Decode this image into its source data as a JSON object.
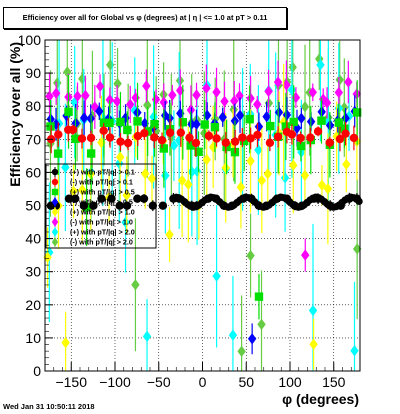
{
  "timestamp": "Wed Jan 31 10:50:11 2018",
  "chart_data": {
    "type": "scatter",
    "title": "Efficiency over all for Global vs φ (degrees) at | η | <= 1.0 at pT > 0.11",
    "xlabel": "φ (degrees)",
    "ylabel": "Efficiency over all (%)",
    "xlim": [
      -180,
      180
    ],
    "ylim": [
      0,
      100
    ],
    "x_ticks": [
      -150,
      -100,
      -50,
      0,
      50,
      100,
      150
    ],
    "y_ticks": [
      0,
      10,
      20,
      30,
      40,
      50,
      60,
      70,
      80,
      90,
      100
    ],
    "grid": true,
    "legend_position": "left-middle",
    "series": [
      {
        "name": "(+) with pT/|q| > 0.1",
        "marker": "circle",
        "color": "#000000",
        "base": 51,
        "amp": 1.5,
        "noise": 0,
        "err": 1.2,
        "outliers": 0
      },
      {
        "name": "(-) with pT/|q| > 0.1",
        "marker": "circle",
        "color": "#ff0000",
        "base": 71,
        "amp": 1,
        "noise": 1.5,
        "err": 3,
        "outliers": 0
      },
      {
        "name": "(+) with pT/|q| > 0.5",
        "marker": "square",
        "color": "#00e000",
        "base": 72,
        "amp": 2,
        "noise": 5,
        "err": 8,
        "outliers": 2
      },
      {
        "name": "(-) with pT/|q| > 0.5",
        "marker": "diamond",
        "color": "#0000ff",
        "base": 76,
        "amp": 1,
        "noise": 2,
        "err": 4,
        "outliers": 1
      },
      {
        "name": "(+) with pT/|q| > 1.0",
        "marker": "diamond",
        "color": "#ffff00",
        "base": 62,
        "amp": 3,
        "noise": 12,
        "err": 12,
        "outliers": 4
      },
      {
        "name": "(-) with pT/|q| > 1.0",
        "marker": "diamond",
        "color": "#ff00ff",
        "base": 83,
        "amp": 2,
        "noise": 3,
        "err": 5,
        "outliers": 1
      },
      {
        "name": "(+) with pT/|q| > 2.0",
        "marker": "diamond",
        "color": "#00ffff",
        "base": 72,
        "amp": 4,
        "noise": 18,
        "err": 18,
        "outliers": 7
      },
      {
        "name": "(-) with pT/|q| > 2.0",
        "marker": "diamond",
        "color": "#66cc44",
        "base": 80,
        "amp": 3,
        "noise": 14,
        "err": 16,
        "outliers": 6
      }
    ],
    "x": [
      -175,
      -165,
      -155,
      -145,
      -135,
      -125,
      -115,
      -105,
      -95,
      -85,
      -75,
      -65,
      -55,
      -45,
      -35,
      -25,
      -15,
      -5,
      5,
      15,
      25,
      35,
      45,
      55,
      65,
      75,
      85,
      95,
      105,
      115,
      125,
      135,
      145,
      155,
      165,
      175
    ]
  }
}
